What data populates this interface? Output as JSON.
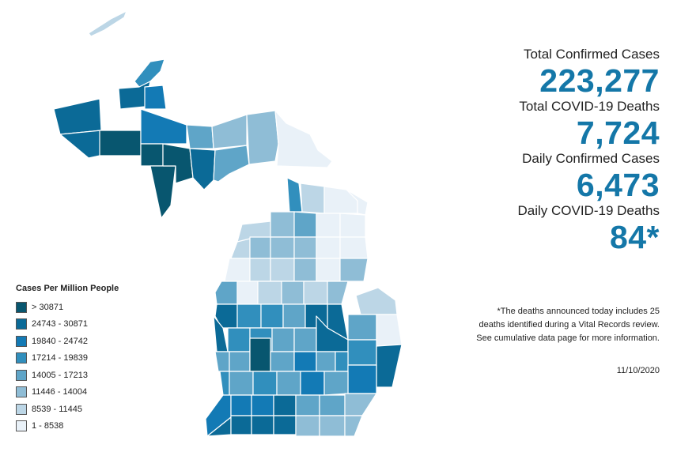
{
  "colors": {
    "c0": "#e9f1f8",
    "c1": "#bcd6e6",
    "c2": "#8fbdd6",
    "c3": "#5fa5c8",
    "c4": "#318fbd",
    "c5": "#137ab5",
    "c6": "#0b6a97",
    "c7": "#08566f",
    "stat_value": "#1477a8"
  },
  "legend": {
    "title": "Cases Per Million People",
    "items": [
      {
        "label": "> 30871",
        "color": "#08566f"
      },
      {
        "label": "24743 - 30871",
        "color": "#0b6a97"
      },
      {
        "label": "19840 - 24742",
        "color": "#137ab5"
      },
      {
        "label": "17214 - 19839",
        "color": "#318fbd"
      },
      {
        "label": "14005 - 17213",
        "color": "#5fa5c8"
      },
      {
        "label": "11446 - 14004",
        "color": "#8fbdd6"
      },
      {
        "label": "8539 - 11445",
        "color": "#bcd6e6"
      },
      {
        "label": "1 - 8538",
        "color": "#e9f1f8"
      }
    ]
  },
  "stats": {
    "total_cases_label": "Total Confirmed Cases",
    "total_cases_value": "223,277",
    "total_deaths_label": "Total COVID-19 Deaths",
    "total_deaths_value": "7,724",
    "daily_cases_label": "Daily Confirmed Cases",
    "daily_cases_value": "6,473",
    "daily_deaths_label": "Daily COVID-19 Deaths",
    "daily_deaths_value": "84*"
  },
  "footnote": "*The deaths announced today includes 25 deaths identified during a Vital Records review. See cumulative data page for more information.",
  "date": "11/10/2020"
}
